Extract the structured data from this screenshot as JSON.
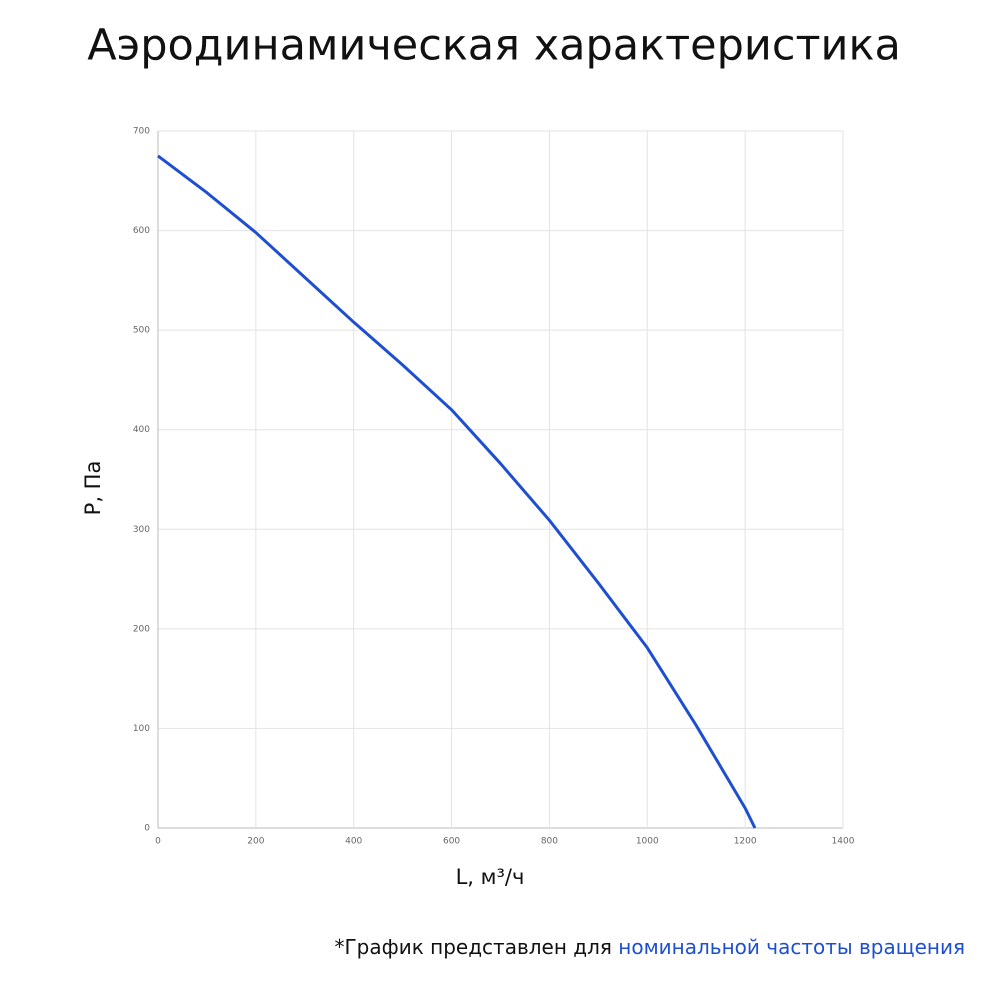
{
  "chart_data": {
    "type": "line",
    "title": "Аэродинамическая характеристика",
    "x_label": "L, м³/ч",
    "y_label": "P, Па",
    "x": [
      0,
      100,
      200,
      300,
      400,
      500,
      600,
      700,
      800,
      900,
      1000,
      1100,
      1200,
      1220
    ],
    "series": [
      {
        "color": "#1f4fd1",
        "values": [
          675,
          638,
          598,
          553,
          508,
          465,
          420,
          366,
          309,
          246,
          181,
          103,
          20,
          0
        ]
      }
    ],
    "xlim": [
      0,
      1400
    ],
    "xticks": [
      0,
      200,
      400,
      600,
      800,
      1000,
      1200,
      1400
    ],
    "ylim": [
      0,
      700
    ],
    "yticks": [
      0,
      100,
      200,
      300,
      400,
      500,
      600,
      700
    ],
    "grid": true,
    "footnote": {
      "text": "*График представлен для",
      "highlight": "номинальной частоты вращения"
    }
  }
}
